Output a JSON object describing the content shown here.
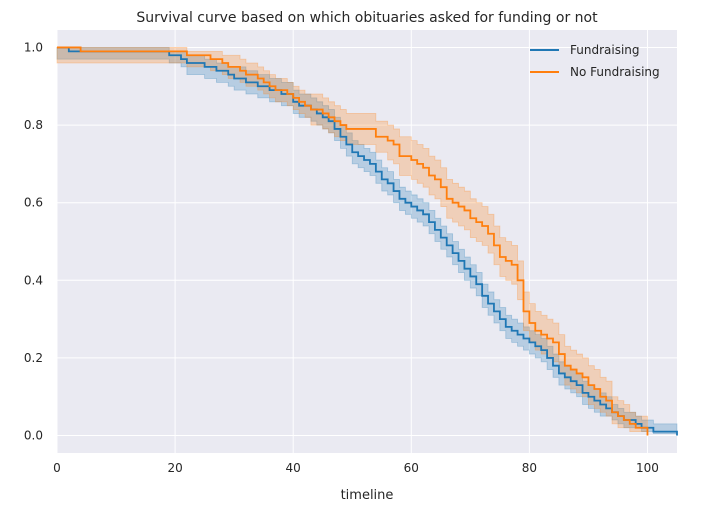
{
  "chart_data": {
    "type": "line",
    "title": "Survival curve based on which obituaries asked for funding or not",
    "xlabel": "timeline",
    "ylabel": "",
    "xlim": [
      0,
      105
    ],
    "ylim": [
      -0.045,
      1.045
    ],
    "xticks": [
      0,
      20,
      40,
      60,
      80,
      100
    ],
    "yticks": [
      0.0,
      0.2,
      0.4,
      0.6,
      0.8,
      1.0
    ],
    "xtick_labels": [
      "0",
      "20",
      "40",
      "60",
      "80",
      "100"
    ],
    "ytick_labels": [
      "0.0",
      "0.2",
      "0.4",
      "0.6",
      "0.8",
      "1.0"
    ],
    "grid": true,
    "step": true,
    "legend_position": "top-right",
    "legend": [
      "Fundraising",
      "No Fundraising"
    ],
    "series": [
      {
        "name": "Fundraising",
        "color": "#1f77b4",
        "x": [
          0,
          2,
          8,
          14,
          19,
          21,
          22,
          25,
          27,
          29,
          30,
          32,
          34,
          36,
          38,
          40,
          41,
          43,
          44,
          45,
          46,
          47,
          48,
          49,
          50,
          51,
          52,
          53,
          54,
          55,
          56,
          57,
          58,
          59,
          60,
          61,
          62,
          63,
          64,
          65,
          66,
          67,
          68,
          69,
          70,
          71,
          72,
          73,
          74,
          75,
          76,
          77,
          78,
          79,
          80,
          81,
          82,
          83,
          84,
          85,
          86,
          87,
          88,
          89,
          90,
          91,
          92,
          93,
          94,
          95,
          96,
          97,
          98,
          99,
          100,
          101,
          103,
          105
        ],
        "y": [
          1.0,
          0.99,
          0.99,
          0.99,
          0.98,
          0.97,
          0.96,
          0.95,
          0.94,
          0.93,
          0.92,
          0.91,
          0.9,
          0.89,
          0.88,
          0.86,
          0.85,
          0.84,
          0.83,
          0.82,
          0.81,
          0.79,
          0.77,
          0.75,
          0.73,
          0.72,
          0.71,
          0.7,
          0.68,
          0.66,
          0.65,
          0.63,
          0.61,
          0.6,
          0.59,
          0.58,
          0.57,
          0.55,
          0.53,
          0.51,
          0.49,
          0.47,
          0.45,
          0.43,
          0.41,
          0.39,
          0.36,
          0.34,
          0.32,
          0.3,
          0.28,
          0.27,
          0.26,
          0.25,
          0.24,
          0.23,
          0.22,
          0.2,
          0.18,
          0.16,
          0.15,
          0.14,
          0.13,
          0.11,
          0.1,
          0.09,
          0.08,
          0.07,
          0.06,
          0.05,
          0.04,
          0.04,
          0.03,
          0.02,
          0.02,
          0.01,
          0.01,
          0.0
        ],
        "ci_low": [
          0.97,
          0.97,
          0.97,
          0.97,
          0.96,
          0.95,
          0.93,
          0.92,
          0.91,
          0.9,
          0.89,
          0.88,
          0.87,
          0.86,
          0.85,
          0.83,
          0.82,
          0.81,
          0.8,
          0.79,
          0.78,
          0.76,
          0.74,
          0.72,
          0.7,
          0.69,
          0.68,
          0.67,
          0.65,
          0.63,
          0.62,
          0.6,
          0.58,
          0.57,
          0.56,
          0.55,
          0.54,
          0.52,
          0.5,
          0.48,
          0.46,
          0.44,
          0.42,
          0.4,
          0.38,
          0.36,
          0.33,
          0.31,
          0.29,
          0.27,
          0.25,
          0.24,
          0.23,
          0.22,
          0.21,
          0.2,
          0.19,
          0.17,
          0.15,
          0.13,
          0.12,
          0.11,
          0.1,
          0.08,
          0.07,
          0.06,
          0.05,
          0.05,
          0.04,
          0.03,
          0.02,
          0.02,
          0.02,
          0.01,
          0.01,
          0.005,
          0.005,
          0.0
        ],
        "ci_high": [
          1.0,
          1.0,
          1.0,
          1.0,
          0.99,
          0.99,
          0.98,
          0.97,
          0.96,
          0.95,
          0.95,
          0.94,
          0.93,
          0.92,
          0.91,
          0.89,
          0.88,
          0.87,
          0.86,
          0.85,
          0.84,
          0.82,
          0.8,
          0.78,
          0.76,
          0.75,
          0.74,
          0.73,
          0.71,
          0.69,
          0.68,
          0.66,
          0.64,
          0.63,
          0.62,
          0.61,
          0.6,
          0.58,
          0.56,
          0.54,
          0.52,
          0.5,
          0.48,
          0.46,
          0.44,
          0.42,
          0.39,
          0.37,
          0.35,
          0.33,
          0.31,
          0.3,
          0.29,
          0.28,
          0.27,
          0.26,
          0.25,
          0.23,
          0.21,
          0.19,
          0.18,
          0.17,
          0.16,
          0.14,
          0.13,
          0.12,
          0.11,
          0.1,
          0.08,
          0.07,
          0.06,
          0.06,
          0.05,
          0.04,
          0.04,
          0.03,
          0.03,
          0.02
        ]
      },
      {
        "name": "No Fundraising",
        "color": "#ff7f0e",
        "x": [
          0,
          4,
          20,
          22,
          26,
          28,
          29,
          30,
          31,
          32,
          33,
          34,
          35,
          36,
          37,
          38,
          39,
          40,
          41,
          42,
          43,
          44,
          45,
          46,
          47,
          48,
          49,
          52,
          54,
          56,
          57,
          58,
          60,
          61,
          62,
          63,
          64,
          65,
          66,
          67,
          68,
          69,
          70,
          71,
          72,
          73,
          74,
          75,
          76,
          77,
          78,
          79,
          80,
          81,
          82,
          83,
          84,
          85,
          86,
          87,
          88,
          89,
          90,
          91,
          92,
          93,
          94,
          95,
          96,
          97,
          98,
          99,
          100
        ],
        "y": [
          1.0,
          0.99,
          0.99,
          0.98,
          0.97,
          0.96,
          0.95,
          0.95,
          0.94,
          0.93,
          0.93,
          0.92,
          0.91,
          0.9,
          0.89,
          0.89,
          0.88,
          0.87,
          0.86,
          0.85,
          0.84,
          0.84,
          0.83,
          0.82,
          0.81,
          0.8,
          0.79,
          0.79,
          0.77,
          0.76,
          0.75,
          0.72,
          0.71,
          0.7,
          0.69,
          0.67,
          0.66,
          0.64,
          0.61,
          0.6,
          0.59,
          0.58,
          0.56,
          0.55,
          0.54,
          0.52,
          0.49,
          0.46,
          0.45,
          0.44,
          0.4,
          0.32,
          0.29,
          0.27,
          0.26,
          0.25,
          0.24,
          0.21,
          0.18,
          0.17,
          0.16,
          0.15,
          0.13,
          0.12,
          0.1,
          0.09,
          0.06,
          0.05,
          0.04,
          0.03,
          0.02,
          0.02,
          0.0
        ],
        "ci_low": [
          0.96,
          0.96,
          0.96,
          0.95,
          0.94,
          0.93,
          0.92,
          0.92,
          0.91,
          0.9,
          0.9,
          0.89,
          0.88,
          0.87,
          0.86,
          0.86,
          0.85,
          0.84,
          0.83,
          0.82,
          0.8,
          0.8,
          0.79,
          0.78,
          0.77,
          0.76,
          0.75,
          0.75,
          0.73,
          0.71,
          0.7,
          0.67,
          0.66,
          0.65,
          0.64,
          0.62,
          0.61,
          0.59,
          0.56,
          0.55,
          0.54,
          0.53,
          0.51,
          0.5,
          0.49,
          0.47,
          0.44,
          0.41,
          0.4,
          0.39,
          0.35,
          0.27,
          0.24,
          0.22,
          0.21,
          0.2,
          0.19,
          0.16,
          0.13,
          0.12,
          0.11,
          0.1,
          0.08,
          0.07,
          0.06,
          0.05,
          0.03,
          0.02,
          0.02,
          0.01,
          0.01,
          0.01,
          0.0
        ],
        "ci_high": [
          1.0,
          1.0,
          1.0,
          0.99,
          0.99,
          0.98,
          0.98,
          0.98,
          0.97,
          0.96,
          0.96,
          0.95,
          0.94,
          0.93,
          0.92,
          0.92,
          0.91,
          0.9,
          0.89,
          0.88,
          0.88,
          0.88,
          0.87,
          0.86,
          0.85,
          0.84,
          0.83,
          0.83,
          0.81,
          0.8,
          0.79,
          0.77,
          0.76,
          0.75,
          0.74,
          0.72,
          0.71,
          0.69,
          0.66,
          0.65,
          0.64,
          0.63,
          0.61,
          0.6,
          0.59,
          0.57,
          0.54,
          0.51,
          0.5,
          0.49,
          0.45,
          0.37,
          0.34,
          0.32,
          0.31,
          0.3,
          0.29,
          0.26,
          0.23,
          0.22,
          0.21,
          0.2,
          0.18,
          0.17,
          0.15,
          0.14,
          0.1,
          0.09,
          0.08,
          0.06,
          0.05,
          0.05,
          0.03
        ]
      }
    ]
  }
}
